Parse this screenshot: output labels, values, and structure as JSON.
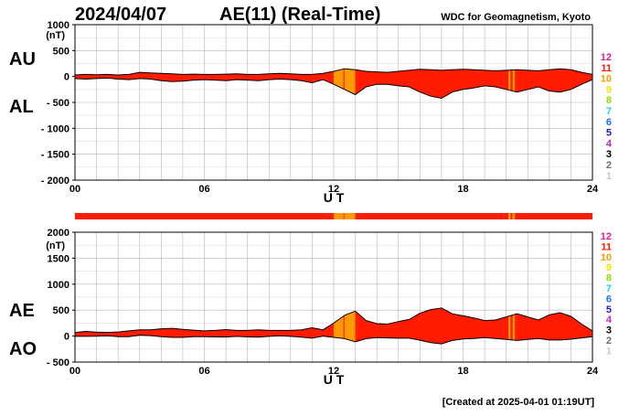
{
  "header": {
    "date": "2024/04/07",
    "title": "AE(11) (Real-Time)",
    "organization": "WDC for Geomagnetism, Kyoto"
  },
  "footer": {
    "created": "[Created at 2025-04-01 01:19UT]"
  },
  "legend": {
    "items": [
      {
        "label": "12",
        "color": "#e0208a"
      },
      {
        "label": "11",
        "color": "#ff1c00"
      },
      {
        "label": "10",
        "color": "#ff9b00"
      },
      {
        "label": "9",
        "color": "#f2e200"
      },
      {
        "label": "8",
        "color": "#8ee000"
      },
      {
        "label": "7",
        "color": "#18d8d8"
      },
      {
        "label": "6",
        "color": "#1f6bff"
      },
      {
        "label": "5",
        "color": "#2a14c8"
      },
      {
        "label": "4",
        "color": "#c81ec8"
      },
      {
        "label": "3",
        "color": "#000000"
      },
      {
        "label": "2",
        "color": "#6e6e6e"
      },
      {
        "label": "1",
        "color": "#c8c8c8"
      }
    ]
  },
  "station_bar": {
    "segments": [
      {
        "start": 0,
        "end": 12.0,
        "stations": 11
      },
      {
        "start": 12.0,
        "end": 12.45,
        "stations": 10
      },
      {
        "start": 12.45,
        "end": 12.5,
        "stations": 11
      },
      {
        "start": 12.5,
        "end": 13.0,
        "stations": 10
      },
      {
        "start": 13.0,
        "end": 20.1,
        "stations": 11
      },
      {
        "start": 20.1,
        "end": 20.2,
        "stations": 10
      },
      {
        "start": 20.2,
        "end": 20.3,
        "stations": 11
      },
      {
        "start": 20.3,
        "end": 20.4,
        "stations": 10
      },
      {
        "start": 20.4,
        "end": 24.0,
        "stations": 11
      }
    ]
  },
  "chart_data": [
    {
      "type": "area",
      "panel": "AU/AL",
      "label_upper": "AU",
      "label_lower": "AL",
      "ylabel": "(nT)",
      "xlabel": "U T",
      "xlim": [
        0,
        24
      ],
      "ylim": [
        -2000,
        1000
      ],
      "x_ticks": [
        "00",
        "06",
        "12",
        "18",
        "24"
      ],
      "y_ticks": [
        "1000",
        "500",
        "0",
        "- 500",
        "- 1000",
        "- 1500",
        "- 2000"
      ],
      "grid": true,
      "x": [
        0,
        0.5,
        1,
        1.5,
        2,
        2.5,
        3,
        3.5,
        4,
        4.5,
        5,
        5.5,
        6,
        6.5,
        7,
        7.5,
        8,
        8.5,
        9,
        9.5,
        10,
        10.5,
        11,
        11.5,
        12,
        12.5,
        13,
        13.5,
        14,
        14.5,
        15,
        15.5,
        16,
        16.5,
        17,
        17.5,
        18,
        18.5,
        19,
        19.5,
        20,
        20.5,
        21,
        21.5,
        22,
        22.5,
        23,
        23.5,
        24
      ],
      "series": [
        {
          "name": "AU",
          "values": [
            30,
            40,
            35,
            40,
            30,
            40,
            80,
            70,
            60,
            50,
            40,
            45,
            40,
            40,
            45,
            50,
            40,
            40,
            50,
            60,
            50,
            40,
            40,
            60,
            100,
            150,
            130,
            100,
            90,
            80,
            100,
            120,
            140,
            130,
            120,
            130,
            140,
            130,
            120,
            110,
            120,
            130,
            120,
            110,
            130,
            150,
            130,
            80,
            40
          ]
        },
        {
          "name": "AL",
          "values": [
            -40,
            -50,
            -40,
            -30,
            -50,
            -60,
            -40,
            -50,
            -80,
            -100,
            -90,
            -70,
            -60,
            -70,
            -80,
            -60,
            -70,
            -80,
            -60,
            -50,
            -60,
            -80,
            -120,
            -60,
            -150,
            -250,
            -350,
            -200,
            -150,
            -150,
            -180,
            -200,
            -300,
            -380,
            -420,
            -300,
            -250,
            -220,
            -180,
            -200,
            -250,
            -300,
            -250,
            -200,
            -280,
            -300,
            -250,
            -150,
            -60
          ]
        }
      ]
    },
    {
      "type": "area",
      "panel": "AE/AO",
      "label_upper": "AE",
      "label_lower": "AO",
      "ylabel": "(nT)",
      "xlabel": "U T",
      "xlim": [
        0,
        24
      ],
      "ylim": [
        -500,
        2000
      ],
      "x_ticks": [
        "00",
        "06",
        "12",
        "18",
        "24"
      ],
      "y_ticks": [
        "2000",
        "1500",
        "1000",
        "500",
        "0",
        "- 500"
      ],
      "grid": true,
      "x": [
        0,
        0.5,
        1,
        1.5,
        2,
        2.5,
        3,
        3.5,
        4,
        4.5,
        5,
        5.5,
        6,
        6.5,
        7,
        7.5,
        8,
        8.5,
        9,
        9.5,
        10,
        10.5,
        11,
        11.5,
        12,
        12.5,
        13,
        13.5,
        14,
        14.5,
        15,
        15.5,
        16,
        16.5,
        17,
        17.5,
        18,
        18.5,
        19,
        19.5,
        20,
        20.5,
        21,
        21.5,
        22,
        22.5,
        23,
        23.5,
        24
      ],
      "series": [
        {
          "name": "AE",
          "values": [
            70,
            90,
            75,
            70,
            80,
            100,
            120,
            120,
            140,
            150,
            130,
            115,
            100,
            110,
            125,
            110,
            110,
            120,
            110,
            110,
            110,
            120,
            160,
            120,
            250,
            400,
            480,
            300,
            240,
            230,
            280,
            320,
            440,
            510,
            540,
            430,
            390,
            350,
            300,
            310,
            370,
            430,
            370,
            310,
            410,
            450,
            380,
            230,
            100
          ]
        },
        {
          "name": "AO",
          "values": [
            -5,
            -5,
            -3,
            5,
            -10,
            -10,
            20,
            10,
            -10,
            -25,
            -25,
            -12,
            -10,
            -15,
            -17,
            -5,
            -15,
            -20,
            -5,
            5,
            -5,
            -20,
            -40,
            0,
            -25,
            -50,
            -110,
            -50,
            -30,
            -35,
            -40,
            -40,
            -80,
            -125,
            -150,
            -85,
            -55,
            -45,
            -30,
            -45,
            -65,
            -85,
            -65,
            -45,
            -75,
            -75,
            -60,
            -35,
            -10
          ]
        }
      ]
    }
  ]
}
